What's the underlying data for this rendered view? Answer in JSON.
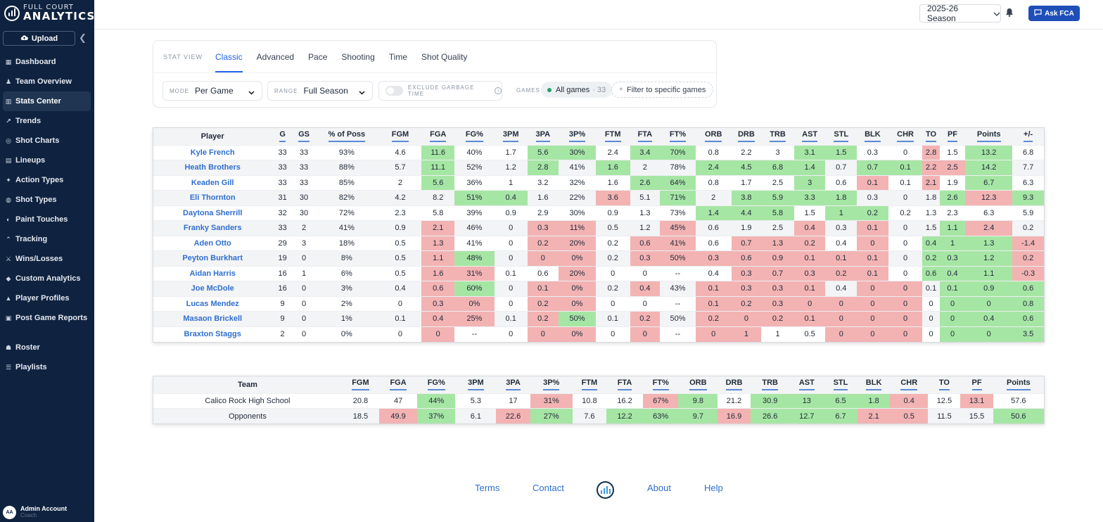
{
  "brand": {
    "top": "FULL COURT",
    "bottom": "ANALYTICS"
  },
  "sidebar": {
    "upload_label": "Upload",
    "items": [
      {
        "label": "Dashboard",
        "icon": "grid-icon"
      },
      {
        "label": "Team Overview",
        "icon": "team-icon"
      },
      {
        "label": "Stats Center",
        "icon": "bar-chart-icon",
        "active": true
      },
      {
        "label": "Trends",
        "icon": "trend-icon"
      },
      {
        "label": "Shot Charts",
        "icon": "target-icon"
      },
      {
        "label": "Lineups",
        "icon": "lineup-icon"
      },
      {
        "label": "Action Types",
        "icon": "action-icon"
      },
      {
        "label": "Shot Types",
        "icon": "shot-icon"
      },
      {
        "label": "Paint Touches",
        "icon": "paint-icon"
      },
      {
        "label": "Tracking",
        "icon": "tracking-icon"
      },
      {
        "label": "Wins/Losses",
        "icon": "wins-icon"
      },
      {
        "label": "Custom Analytics",
        "icon": "custom-icon"
      },
      {
        "label": "Player Profiles",
        "icon": "profile-icon"
      },
      {
        "label": "Post Game Reports",
        "icon": "report-icon"
      }
    ],
    "items2": [
      {
        "label": "Roster",
        "icon": "roster-icon"
      },
      {
        "label": "Playlists",
        "icon": "playlist-icon"
      }
    ],
    "account": {
      "initials": "AA",
      "name": "Admin Account",
      "role": "Coach"
    }
  },
  "topbar": {
    "season": "2025-26 Season",
    "ask_label": "Ask FCA"
  },
  "statview": {
    "label": "STAT VIEW",
    "tabs": [
      "Classic",
      "Advanced",
      "Pace",
      "Shooting",
      "Time",
      "Shot Quality"
    ],
    "active_tab": "Classic",
    "mode_key": "MODE",
    "mode_value": "Per Game",
    "range_key": "RANGE",
    "range_value": "Full Season",
    "garbage_label": "EXCLUDE GARBAGE TIME",
    "games_key": "GAMES",
    "games_all": "All games",
    "games_count": "· 33",
    "filter_label": "Filter to specific games"
  },
  "player_table": {
    "headers": [
      "Player",
      "G",
      "GS",
      "% of Poss",
      "FGM",
      "FGA",
      "FG%",
      "3PM",
      "3PA",
      "3P%",
      "FTM",
      "FTA",
      "FT%",
      "ORB",
      "DRB",
      "TRB",
      "AST",
      "STL",
      "BLK",
      "CHR",
      "TO",
      "PF",
      "Points",
      "+/-"
    ],
    "rows": [
      [
        "Kyle French",
        "33",
        "33",
        "93%",
        "4.6",
        "11.6",
        "40%",
        "1.7",
        "5.6",
        "30%",
        "2.4",
        "3.4",
        "70%",
        "0.8",
        "2.2",
        "3",
        "3.1",
        "1.5",
        "0.3",
        "0",
        "2.8",
        "1.5",
        "13.2",
        "6.8"
      ],
      [
        "Heath Brothers",
        "33",
        "33",
        "88%",
        "5.7",
        "11.1",
        "52%",
        "1.2",
        "2.8",
        "41%",
        "1.6",
        "2",
        "78%",
        "2.4",
        "4.5",
        "6.8",
        "1.4",
        "0.7",
        "0.7",
        "0.1",
        "2.2",
        "2.5",
        "14.2",
        "7.7"
      ],
      [
        "Keaden Gill",
        "33",
        "33",
        "85%",
        "2",
        "5.6",
        "36%",
        "1",
        "3.2",
        "32%",
        "1.6",
        "2.6",
        "64%",
        "0.8",
        "1.7",
        "2.5",
        "3",
        "0.6",
        "0.1",
        "0.1",
        "2.1",
        "1.9",
        "6.7",
        "6.3"
      ],
      [
        "Eli Thornton",
        "31",
        "30",
        "82%",
        "4.2",
        "8.2",
        "51%",
        "0.4",
        "1.6",
        "22%",
        "3.6",
        "5.1",
        "71%",
        "2",
        "3.8",
        "5.9",
        "3.3",
        "1.8",
        "0.3",
        "0",
        "1.8",
        "2.6",
        "12.3",
        "9.3"
      ],
      [
        "Daytona Sherrill",
        "32",
        "30",
        "72%",
        "2.3",
        "5.8",
        "39%",
        "0.9",
        "2.9",
        "30%",
        "0.9",
        "1.3",
        "73%",
        "1.4",
        "4.4",
        "5.8",
        "1.5",
        "1",
        "0.2",
        "0.2",
        "1.3",
        "2.3",
        "6.3",
        "5.9"
      ],
      [
        "Franky Sanders",
        "33",
        "2",
        "41%",
        "0.9",
        "2.1",
        "46%",
        "0",
        "0.3",
        "11%",
        "0.5",
        "1.2",
        "45%",
        "0.6",
        "1.9",
        "2.5",
        "0.4",
        "0.3",
        "0.1",
        "0",
        "1.5",
        "1.1",
        "2.4",
        "0.2"
      ],
      [
        "Aden Otto",
        "29",
        "3",
        "18%",
        "0.5",
        "1.3",
        "41%",
        "0",
        "0.2",
        "20%",
        "0.2",
        "0.6",
        "41%",
        "0.6",
        "0.7",
        "1.3",
        "0.2",
        "0.4",
        "0",
        "0",
        "0.4",
        "1",
        "1.3",
        "-1.4"
      ],
      [
        "Peyton Burkhart",
        "19",
        "0",
        "8%",
        "0.5",
        "1.1",
        "48%",
        "0",
        "0",
        "0%",
        "0.2",
        "0.3",
        "50%",
        "0.3",
        "0.6",
        "0.9",
        "0.1",
        "0.1",
        "0.1",
        "0",
        "0.2",
        "0.3",
        "1.2",
        "0.2"
      ],
      [
        "Aidan Harris",
        "16",
        "1",
        "6%",
        "0.5",
        "1.6",
        "31%",
        "0.1",
        "0.6",
        "20%",
        "0",
        "0",
        "--",
        "0.4",
        "0.3",
        "0.7",
        "0.3",
        "0.2",
        "0.1",
        "0",
        "0.6",
        "0.4",
        "1.1",
        "-0.3"
      ],
      [
        "Joe McDole",
        "16",
        "0",
        "3%",
        "0.4",
        "0.6",
        "60%",
        "0",
        "0.1",
        "0%",
        "0.2",
        "0.4",
        "43%",
        "0.1",
        "0.3",
        "0.3",
        "0.1",
        "0.4",
        "0",
        "0",
        "0.1",
        "0.1",
        "0.9",
        "0.6"
      ],
      [
        "Lucas Mendez",
        "9",
        "0",
        "2%",
        "0",
        "0.3",
        "0%",
        "0",
        "0.2",
        "0%",
        "0",
        "0",
        "--",
        "0.1",
        "0.2",
        "0.3",
        "0",
        "0",
        "0",
        "0",
        "0",
        "0",
        "0",
        "0.8"
      ],
      [
        "Masaon Brickell",
        "9",
        "0",
        "1%",
        "0.1",
        "0.4",
        "25%",
        "0.1",
        "0.2",
        "50%",
        "0.1",
        "0.2",
        "50%",
        "0.2",
        "0",
        "0.2",
        "0.1",
        "0",
        "0",
        "0",
        "0",
        "0",
        "0.4",
        "0.6"
      ],
      [
        "Braxton Staggs",
        "2",
        "0",
        "0%",
        "0",
        "0",
        "--",
        "0",
        "0",
        "0%",
        "0",
        "0",
        "--",
        "0",
        "1",
        "1",
        "0.5",
        "0",
        "0",
        "0",
        "0",
        "0",
        "0",
        "3.5"
      ]
    ],
    "shading": [
      "nnnnngnnggnggnnnggnnrngn",
      "nnnnngnngngnnggggnggrrgn",
      "nnnnngnnnnnggnnngnrnrngn",
      "nnnnnnggnnrngnggggnnngrgn",
      "nnnnnnnnnnnnngggnggnnnnnn",
      "nnnnnrnnrrnnrnnnrnrnngrn",
      "nnnnnrnnrrnrrnrrrnrngggrn",
      "nnnnnrgnrrnrrrrrrrrngggrn",
      "nnnnnrrnnrnnnnrrrrrngggrn",
      "nnnnnrgnrrnrnrrrrnrrngggrn",
      "nnnnnrrnrrnnnrrrrrrrngggrn",
      "nnnnnrrnrgnrnrrrrrrrngggrn",
      "nnnnnrnnrrnrnrrnnrrrngggrn"
    ]
  },
  "team_table": {
    "headers": [
      "Team",
      "FGM",
      "FGA",
      "FG%",
      "3PM",
      "3PA",
      "3P%",
      "FTM",
      "FTA",
      "FT%",
      "ORB",
      "DRB",
      "TRB",
      "AST",
      "STL",
      "BLK",
      "CHR",
      "TO",
      "PF",
      "Points"
    ],
    "rows": [
      [
        "Calico Rock High School",
        "20.8",
        "47",
        "44%",
        "5.3",
        "17",
        "31%",
        "10.8",
        "16.2",
        "67%",
        "9.8",
        "21.2",
        "30.9",
        "13",
        "6.5",
        "1.8",
        "0.4",
        "12.5",
        "13.1",
        "57.6"
      ],
      [
        "Opponents",
        "18.5",
        "49.9",
        "37%",
        "6.1",
        "22.6",
        "27%",
        "7.6",
        "12.2",
        "63%",
        "9.7",
        "16.9",
        "26.6",
        "12.7",
        "6.7",
        "2.1",
        "0.5",
        "11.5",
        "15.5",
        "50.6"
      ]
    ],
    "shading": [
      "nnngnnrnnrgnggggrnrnn",
      "nnrgnrgngggrgggrrnngggg"
    ]
  },
  "footer": {
    "terms": "Terms",
    "contact": "Contact",
    "about": "About",
    "help": "Help"
  }
}
